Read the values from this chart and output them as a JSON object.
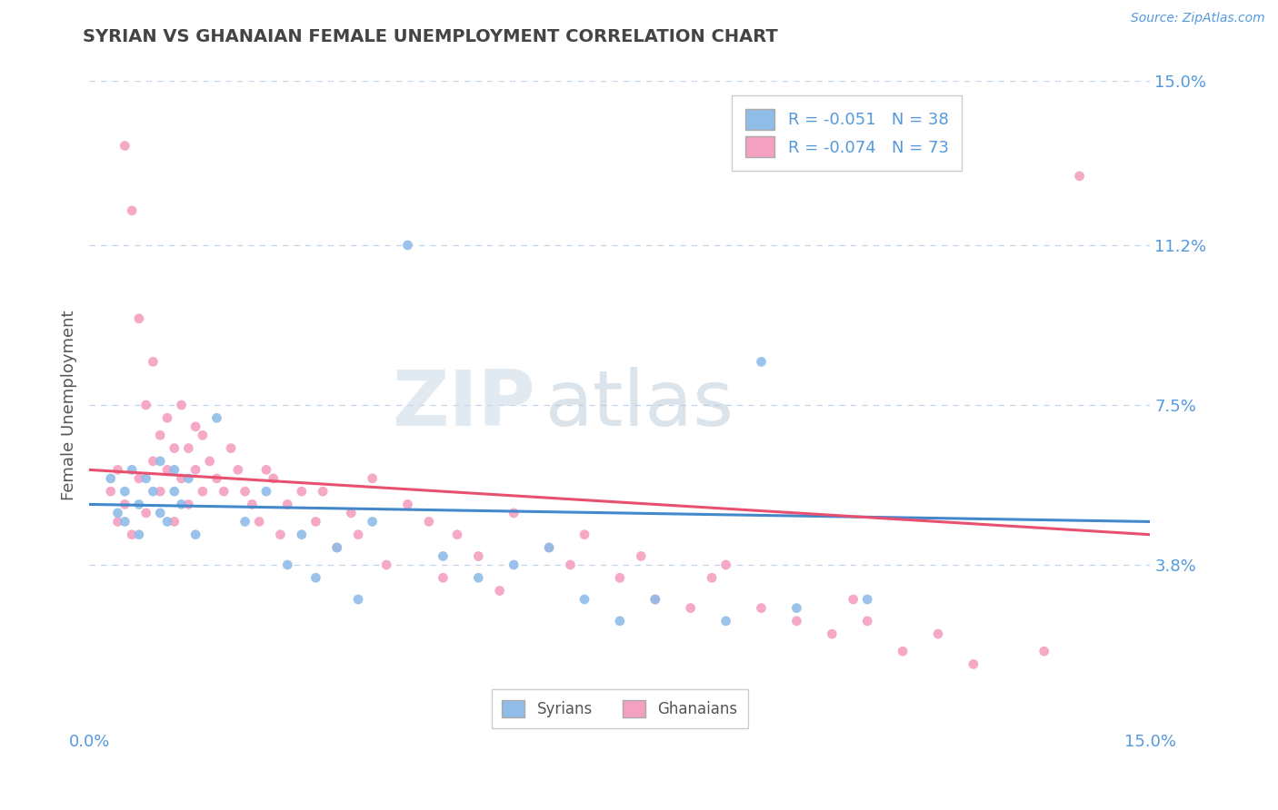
{
  "title": "SYRIAN VS GHANAIAN FEMALE UNEMPLOYMENT CORRELATION CHART",
  "source": "Source: ZipAtlas.com",
  "ylabel": "Female Unemployment",
  "watermark_zip": "ZIP",
  "watermark_atlas": "atlas",
  "xmin": 0.0,
  "xmax": 0.15,
  "ymin": 0.0,
  "ymax": 0.15,
  "ytick_vals": [
    0.038,
    0.075,
    0.112,
    0.15
  ],
  "ytick_labels": [
    "3.8%",
    "7.5%",
    "11.2%",
    "15.0%"
  ],
  "xtick_vals": [
    0.0,
    0.15
  ],
  "xtick_labels": [
    "0.0%",
    "15.0%"
  ],
  "legend_label_syrians": "Syrians",
  "legend_label_ghanaians": "Ghanaians",
  "syrians_color": "#90bce8",
  "ghanaians_color": "#f4a0c0",
  "trend_syrian_color": "#4488cc",
  "trend_ghanaian_color": "#e85070",
  "background_color": "#ffffff",
  "grid_color": "#c0d4e8",
  "title_color": "#444444",
  "axis_label_color": "#555555",
  "tick_label_color": "#5599dd",
  "R_syrian": -0.051,
  "N_syrian": 38,
  "R_ghanaian": -0.074,
  "N_ghanaian": 73,
  "syrian_x": [
    0.003,
    0.004,
    0.005,
    0.005,
    0.006,
    0.007,
    0.007,
    0.008,
    0.009,
    0.01,
    0.01,
    0.011,
    0.012,
    0.012,
    0.013,
    0.014,
    0.015,
    0.018,
    0.022,
    0.025,
    0.028,
    0.03,
    0.032,
    0.035,
    0.038,
    0.04,
    0.045,
    0.05,
    0.055,
    0.06,
    0.065,
    0.07,
    0.075,
    0.08,
    0.09,
    0.095,
    0.1,
    0.11
  ],
  "syrian_y": [
    0.058,
    0.05,
    0.055,
    0.048,
    0.06,
    0.052,
    0.045,
    0.058,
    0.055,
    0.05,
    0.062,
    0.048,
    0.055,
    0.06,
    0.052,
    0.058,
    0.045,
    0.072,
    0.048,
    0.055,
    0.038,
    0.045,
    0.035,
    0.042,
    0.03,
    0.048,
    0.112,
    0.04,
    0.035,
    0.038,
    0.042,
    0.03,
    0.025,
    0.03,
    0.025,
    0.085,
    0.028,
    0.03
  ],
  "ghanaian_x": [
    0.003,
    0.004,
    0.004,
    0.005,
    0.005,
    0.006,
    0.006,
    0.007,
    0.007,
    0.008,
    0.008,
    0.009,
    0.009,
    0.01,
    0.01,
    0.011,
    0.011,
    0.012,
    0.012,
    0.013,
    0.013,
    0.014,
    0.014,
    0.015,
    0.015,
    0.016,
    0.016,
    0.017,
    0.018,
    0.019,
    0.02,
    0.021,
    0.022,
    0.023,
    0.024,
    0.025,
    0.026,
    0.027,
    0.028,
    0.03,
    0.032,
    0.033,
    0.035,
    0.037,
    0.038,
    0.04,
    0.042,
    0.045,
    0.048,
    0.05,
    0.052,
    0.055,
    0.058,
    0.06,
    0.065,
    0.068,
    0.07,
    0.075,
    0.078,
    0.08,
    0.085,
    0.088,
    0.09,
    0.095,
    0.1,
    0.105,
    0.108,
    0.11,
    0.115,
    0.12,
    0.125,
    0.135,
    0.14
  ],
  "ghanaian_y": [
    0.055,
    0.048,
    0.06,
    0.052,
    0.135,
    0.045,
    0.12,
    0.058,
    0.095,
    0.05,
    0.075,
    0.062,
    0.085,
    0.055,
    0.068,
    0.06,
    0.072,
    0.048,
    0.065,
    0.058,
    0.075,
    0.052,
    0.065,
    0.06,
    0.07,
    0.055,
    0.068,
    0.062,
    0.058,
    0.055,
    0.065,
    0.06,
    0.055,
    0.052,
    0.048,
    0.06,
    0.058,
    0.045,
    0.052,
    0.055,
    0.048,
    0.055,
    0.042,
    0.05,
    0.045,
    0.058,
    0.038,
    0.052,
    0.048,
    0.035,
    0.045,
    0.04,
    0.032,
    0.05,
    0.042,
    0.038,
    0.045,
    0.035,
    0.04,
    0.03,
    0.028,
    0.035,
    0.038,
    0.028,
    0.025,
    0.022,
    0.03,
    0.025,
    0.018,
    0.022,
    0.015,
    0.018,
    0.128
  ]
}
